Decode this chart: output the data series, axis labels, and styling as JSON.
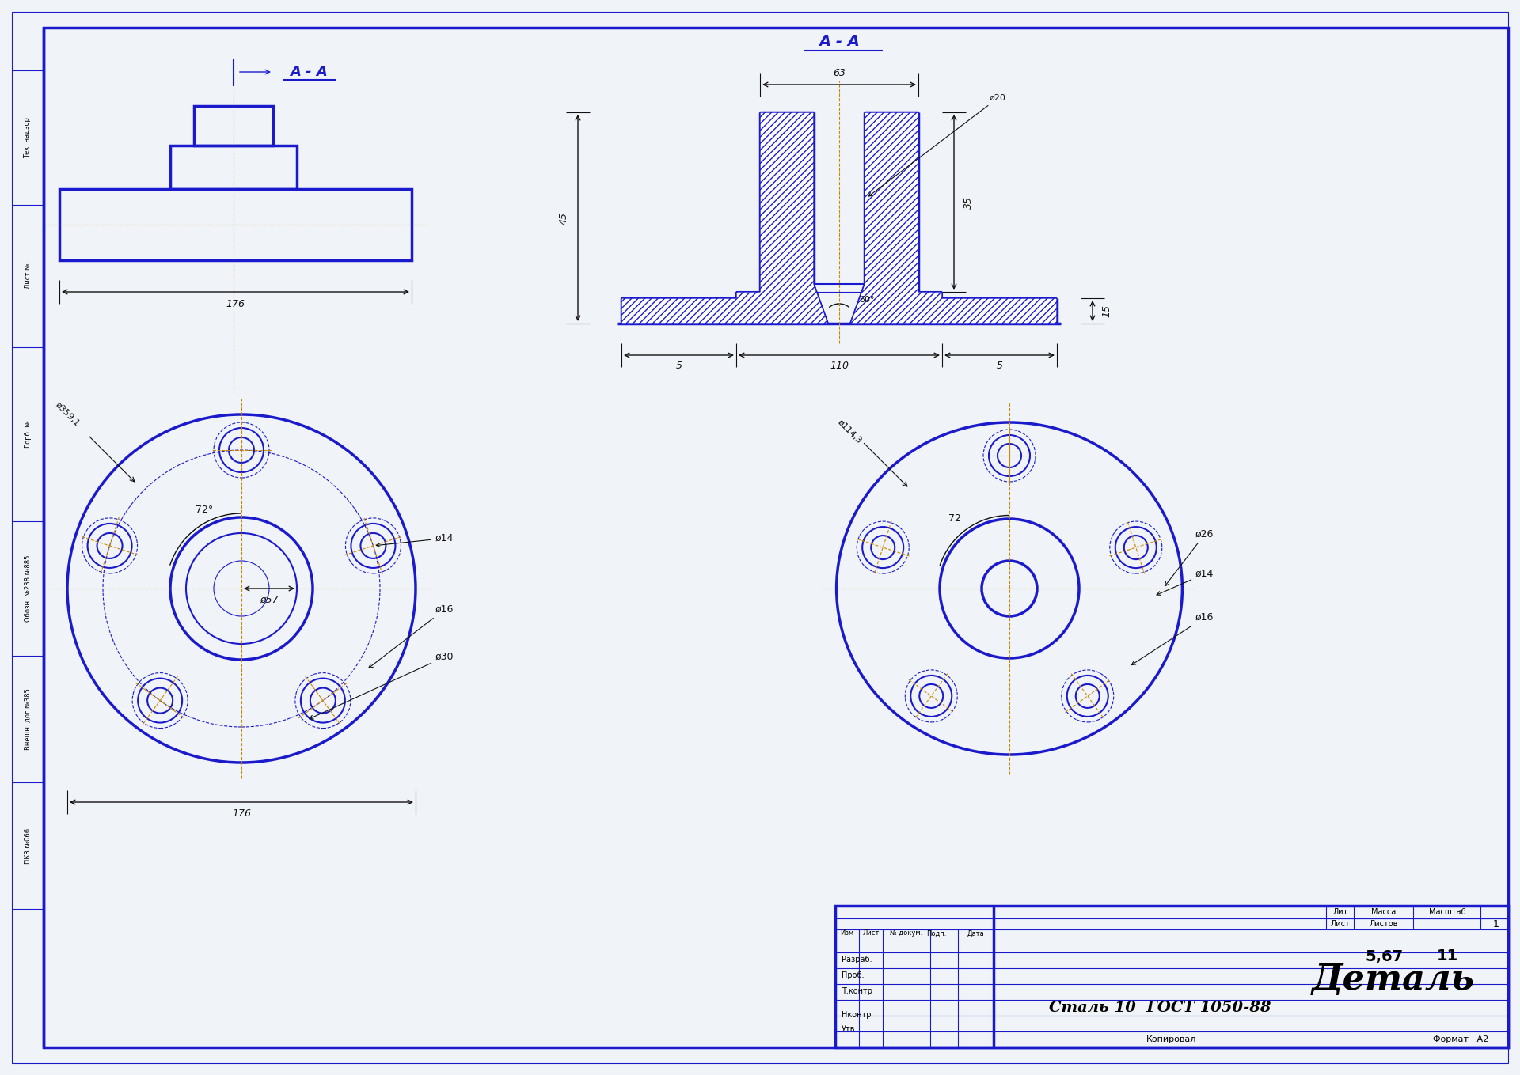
{
  "bg_color": "#f0f4f8",
  "paper_color": "#ffffff",
  "bc": "#1a1acc",
  "dc": "#111111",
  "clc": "#cc8800",
  "lw_thick": 2.5,
  "lw_med": 1.5,
  "lw_thin": 0.8,
  "lw_vthin": 0.5,
  "title": "Деталь",
  "material": "Сталь 10  ГОСТ 1050-88",
  "mass": "5,67",
  "sheets": "11",
  "sheet_n": "1",
  "kopirobal": "Копировал",
  "format_a2": "Формат   А2",
  "lit": "Лит",
  "massa_lbl": "Масса",
  "masshtab_lbl": "Масштаб",
  "list_lbl": "Лист",
  "listov_lbl": "Листов",
  "izm_lbl": "Изм",
  "list2_lbl": "Лист",
  "nodokum_lbl": "№ докум.",
  "podp_lbl": "Подп.",
  "data_lbl": "Дата",
  "razrab_lbl": "Разраб.",
  "prob_lbl": "Проб.",
  "tkontr_lbl": "Т.контр",
  "nkontr_lbl": "Нконтр",
  "utv_lbl": "Утв.",
  "aa_lbl": "А - А",
  "d176": "176",
  "d63": "63",
  "d45": "45",
  "d35": "35",
  "d15": "15",
  "d110": "110",
  "d5": "5",
  "d60deg": "60°",
  "d72deg": "72°",
  "d72": "72",
  "dphi57": "ø57",
  "dphi14l": "ø14",
  "dphi16l": "ø16",
  "dphi30": "ø30",
  "dphi359": "ø359,1",
  "dphi1143": "ø114,3",
  "dphi26": "ø26",
  "dphi14r": "ø14",
  "dphi16r": "ø16",
  "dphi20": "ø20",
  "left_strips": [
    "Тех. надзор",
    "Лист №",
    "Горб. №",
    "Обозн. №238 №885",
    "Внешн. дог №385",
    "ПКЗ №066"
  ]
}
